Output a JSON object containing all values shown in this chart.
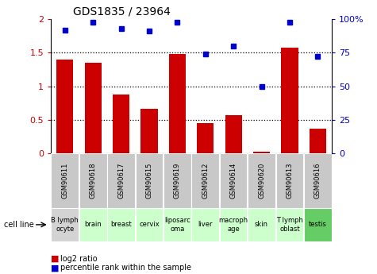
{
  "title": "GDS1835 / 23964",
  "samples": [
    "GSM90611",
    "GSM90618",
    "GSM90617",
    "GSM90615",
    "GSM90619",
    "GSM90612",
    "GSM90614",
    "GSM90620",
    "GSM90613",
    "GSM90616"
  ],
  "cell_lines": [
    "B lymph\nocyte",
    "brain",
    "breast",
    "cervix",
    "liposarc\noma",
    "liver",
    "macroph\nage",
    "skin",
    "T lymph\noblast",
    "testis"
  ],
  "log2_ratio": [
    1.4,
    1.35,
    0.88,
    0.67,
    1.48,
    0.45,
    0.57,
    0.03,
    1.58,
    0.37
  ],
  "percentile_rank": [
    92,
    98,
    93,
    91,
    98,
    74,
    80,
    50,
    98,
    72
  ],
  "bar_color": "#cc0000",
  "dot_color": "#0000cc",
  "ylim_left": [
    0,
    2
  ],
  "ylim_right": [
    0,
    100
  ],
  "yticks_left": [
    0,
    0.5,
    1.0,
    1.5,
    2.0
  ],
  "yticks_right": [
    0,
    25,
    50,
    75,
    100
  ],
  "ytick_labels_left": [
    "0",
    "0.5",
    "1",
    "1.5",
    "2"
  ],
  "ytick_labels_right": [
    "0",
    "25",
    "50",
    "75",
    "100%"
  ],
  "cell_line_colors": [
    "#d3d3d3",
    "#ccffcc",
    "#ccffcc",
    "#ccffcc",
    "#ccffcc",
    "#ccffcc",
    "#ccffcc",
    "#ccffcc",
    "#ccffcc",
    "#66cc66"
  ],
  "gsm_bg_color": "#c8c8c8",
  "legend_red_label": "log2 ratio",
  "legend_blue_label": "percentile rank within the sample",
  "cell_line_label": "cell line",
  "dotted_lines": [
    0.5,
    1.0,
    1.5
  ]
}
